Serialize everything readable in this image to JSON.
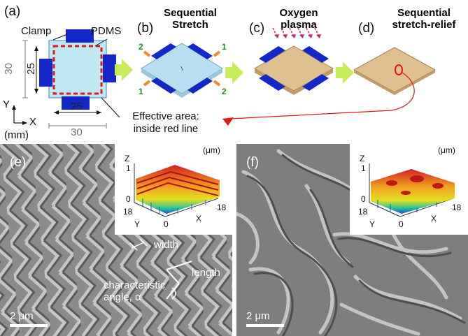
{
  "figure": {
    "panels": {
      "a": "(a)",
      "b": "(b)",
      "c": "(c)",
      "d": "(d)",
      "e": "(e)",
      "f": "(f)"
    },
    "titles": {
      "b_line1": "Sequential",
      "b_line2": "Stretch",
      "c_line1": "Oxygen",
      "c_line2": "plasma",
      "d_line1": "Sequential",
      "d_line2": "stretch-relief"
    },
    "schematic_a": {
      "clamp_label": "Clamp",
      "pdms_label": "PDMS",
      "dim_30_vertical": "30",
      "dim_25_vertical": "25",
      "dim_25_horizontal": "25",
      "dim_30_horizontal": "30",
      "axis_y": "Y",
      "axis_x": "X",
      "axis_unit": "(mm)",
      "effective_line1": "Effective area:",
      "effective_line2": "inside red line"
    },
    "stretch_b": {
      "arrow_1": "1",
      "arrow_2": "2"
    },
    "sem_e": {
      "unit": "(μm)",
      "z_axis": "Z",
      "z_tick_top": "1",
      "z_tick_bottom": "0",
      "y_axis": "Y",
      "x_axis": "X",
      "tick_18_left": "18",
      "tick_0": "0",
      "tick_18_right": "18",
      "width_label": "width",
      "length_label": "length",
      "angle_line1": "characteristic",
      "angle_line2": "angle, α",
      "scale": "2 μm"
    },
    "sem_f": {
      "unit": "(μm)",
      "z_axis": "Z",
      "z_tick_top": "1",
      "z_tick_bottom": "0",
      "y_axis": "Y",
      "x_axis": "X",
      "tick_18_left": "18",
      "tick_0": "0",
      "tick_18_right": "18",
      "scale": "2 μm"
    },
    "colors": {
      "clamp": "#1428c8",
      "pdms": "#bfe8f4",
      "effective_line": "#e01818",
      "plasma_arrows": "#c0287a",
      "stretched_film": "#b8dff0",
      "oxidized_film": "#e0c08e",
      "process_arrow": "#c6ec5a",
      "arrow_orange": "#f08a2a",
      "arrow_number_green": "#1e8c1e"
    }
  }
}
